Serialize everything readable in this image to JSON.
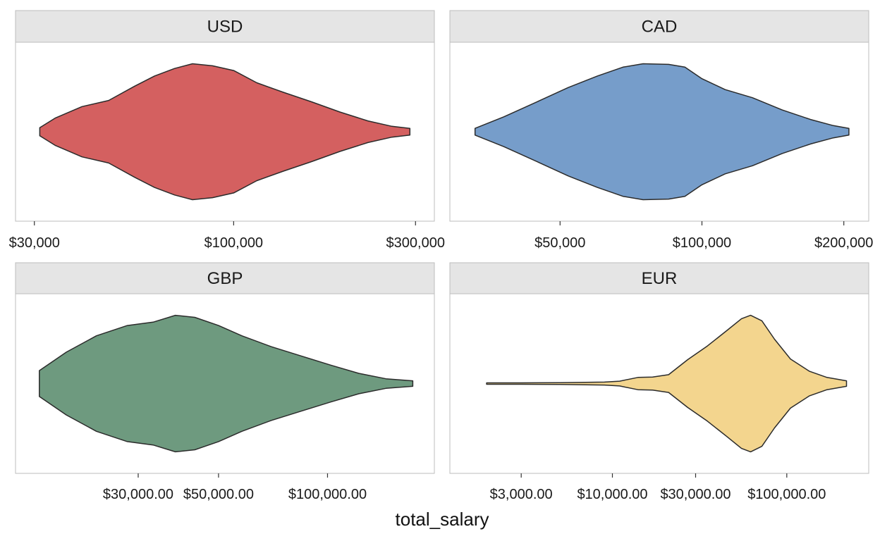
{
  "chart_data": {
    "type": "violin",
    "xlabel": "total_salary",
    "scale": "log",
    "outline_color": "#2b2b2b",
    "strip_fill": "#e5e5e5",
    "panels": [
      {
        "name": "USD",
        "fill": "#d46060",
        "xlim": [
          30000,
          300000
        ],
        "range": [
          31000,
          290000
        ],
        "ticks": [
          {
            "value": 30000,
            "label": "$30,000"
          },
          {
            "value": 100000,
            "label": "$100,000"
          },
          {
            "value": 300000,
            "label": "$300,000"
          }
        ],
        "density": [
          [
            31000,
            0.06
          ],
          [
            34000,
            0.2
          ],
          [
            40000,
            0.37
          ],
          [
            47000,
            0.46
          ],
          [
            55000,
            0.67
          ],
          [
            62000,
            0.82
          ],
          [
            70000,
            0.93
          ],
          [
            78000,
            1.0
          ],
          [
            88000,
            0.97
          ],
          [
            100000,
            0.9
          ],
          [
            115000,
            0.72
          ],
          [
            135000,
            0.58
          ],
          [
            160000,
            0.44
          ],
          [
            190000,
            0.29
          ],
          [
            225000,
            0.16
          ],
          [
            260000,
            0.08
          ],
          [
            290000,
            0.05
          ]
        ]
      },
      {
        "name": "CAD",
        "fill": "#769dca",
        "xlim": [
          32000,
          206000
        ],
        "range": [
          33000,
          205000
        ],
        "ticks": [
          {
            "value": 50000,
            "label": "$50,000"
          },
          {
            "value": 100000,
            "label": "$100,000"
          },
          {
            "value": 200000,
            "label": "$200,000"
          }
        ],
        "density": [
          [
            33000,
            0.05
          ],
          [
            38000,
            0.22
          ],
          [
            45000,
            0.45
          ],
          [
            52000,
            0.65
          ],
          [
            60000,
            0.82
          ],
          [
            68000,
            0.95
          ],
          [
            75000,
            1.0
          ],
          [
            85000,
            0.99
          ],
          [
            92000,
            0.95
          ],
          [
            100000,
            0.78
          ],
          [
            112000,
            0.62
          ],
          [
            128000,
            0.5
          ],
          [
            148000,
            0.32
          ],
          [
            170000,
            0.18
          ],
          [
            190000,
            0.09
          ],
          [
            205000,
            0.05
          ]
        ]
      },
      {
        "name": "GBP",
        "fill": "#6e9a7f",
        "xlim": [
          15500,
          175000
        ],
        "range": [
          16000,
          172000
        ],
        "ticks": [
          {
            "value": 30000,
            "label": "$30,000.00"
          },
          {
            "value": 50000,
            "label": "$50,000.00"
          },
          {
            "value": 100000,
            "label": "$100,000.00"
          }
        ],
        "density": [
          [
            16000,
            0.19
          ],
          [
            19000,
            0.46
          ],
          [
            23000,
            0.7
          ],
          [
            28000,
            0.85
          ],
          [
            33000,
            0.9
          ],
          [
            38000,
            1.0
          ],
          [
            43000,
            0.97
          ],
          [
            50000,
            0.85
          ],
          [
            58000,
            0.7
          ],
          [
            70000,
            0.54
          ],
          [
            85000,
            0.4
          ],
          [
            102000,
            0.27
          ],
          [
            122000,
            0.15
          ],
          [
            145000,
            0.07
          ],
          [
            172000,
            0.04
          ]
        ]
      },
      {
        "name": "EUR",
        "fill": "#f3d58e",
        "xlim": [
          1500,
          230000
        ],
        "range": [
          1900,
          220000
        ],
        "ticks": [
          {
            "value": 3000,
            "label": "$3,000.00"
          },
          {
            "value": 10000,
            "label": "$10,000.00"
          },
          {
            "value": 30000,
            "label": "$30,000.00"
          },
          {
            "value": 100000,
            "label": "$100,000.00"
          }
        ],
        "density": [
          [
            1900,
            0.01
          ],
          [
            3000,
            0.01
          ],
          [
            5000,
            0.012
          ],
          [
            7000,
            0.018
          ],
          [
            9000,
            0.022
          ],
          [
            11000,
            0.035
          ],
          [
            14000,
            0.09
          ],
          [
            17000,
            0.095
          ],
          [
            21000,
            0.13
          ],
          [
            27000,
            0.35
          ],
          [
            35000,
            0.55
          ],
          [
            45000,
            0.77
          ],
          [
            55000,
            0.95
          ],
          [
            62000,
            1.0
          ],
          [
            72000,
            0.92
          ],
          [
            85000,
            0.65
          ],
          [
            105000,
            0.36
          ],
          [
            135000,
            0.18
          ],
          [
            170000,
            0.09
          ],
          [
            220000,
            0.04
          ]
        ]
      }
    ]
  }
}
